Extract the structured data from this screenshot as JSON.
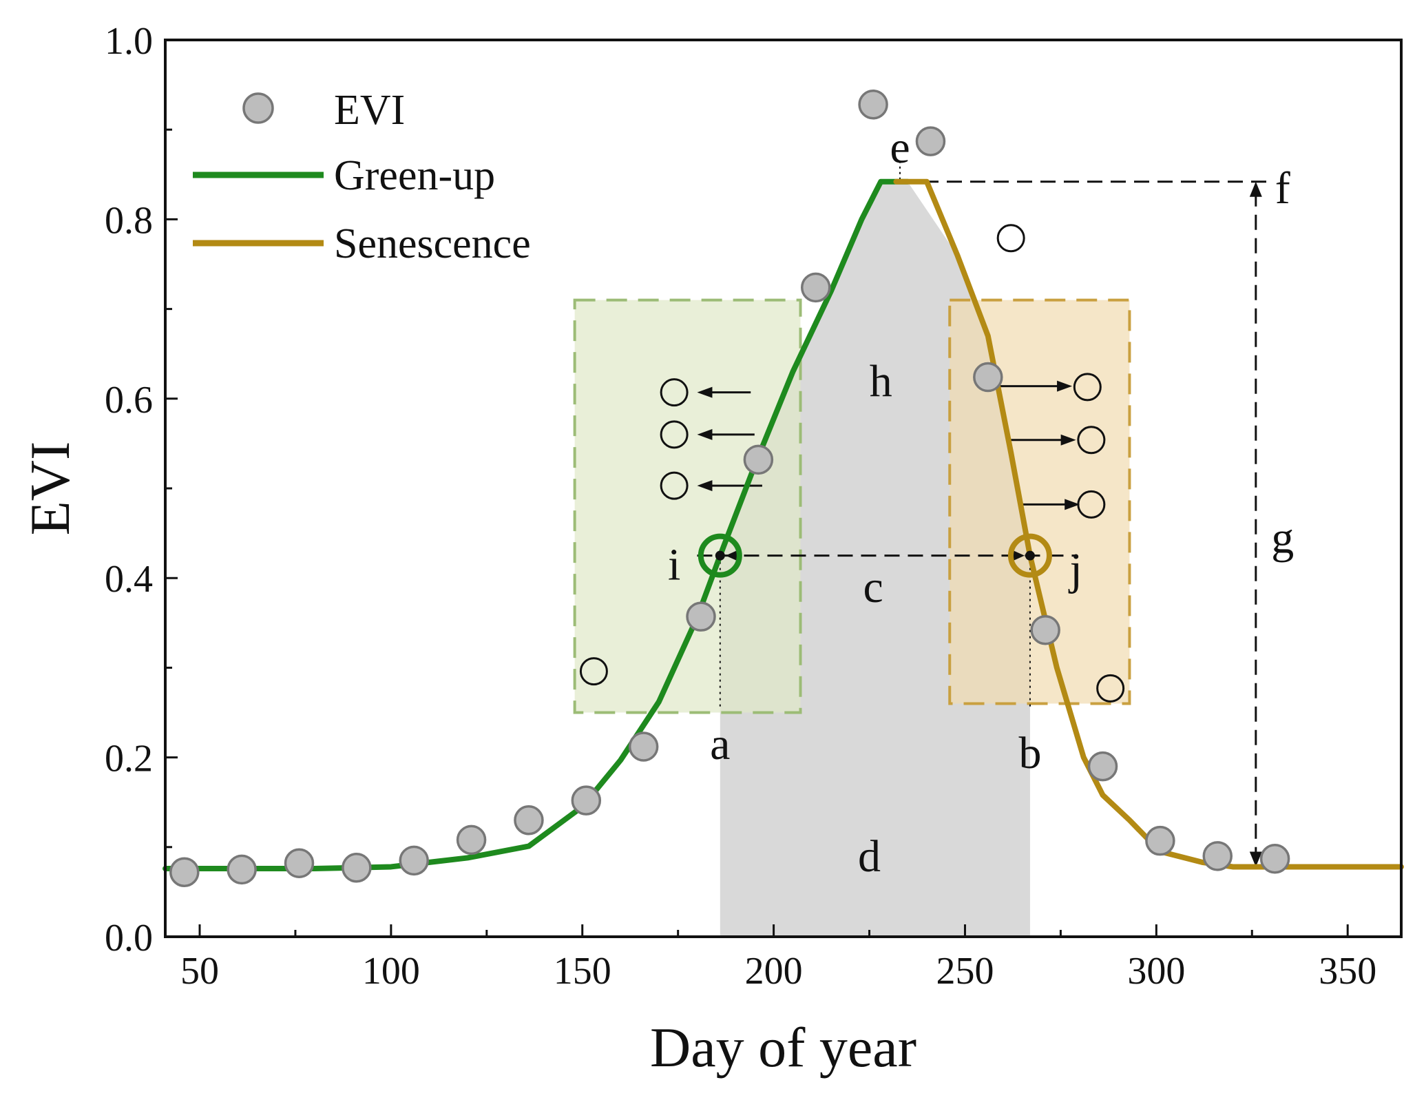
{
  "chart_data": {
    "type": "scatter",
    "title": "",
    "xlabel": "Day of year",
    "ylabel": "EVI",
    "xlim": [
      41,
      364
    ],
    "ylim": [
      0.0,
      1.0
    ],
    "xticks": [
      50,
      100,
      150,
      200,
      250,
      300,
      350
    ],
    "xtick_labels": [
      "50",
      "100",
      "150",
      "200",
      "250",
      "300",
      "350"
    ],
    "yticks": [
      0.0,
      0.2,
      0.4,
      0.6,
      0.8,
      1.0
    ],
    "ytick_labels": [
      "0.0",
      "0.2",
      "0.4",
      "0.6",
      "0.8",
      "1.0"
    ],
    "legend": {
      "position": "top-left",
      "entries": [
        {
          "label": "EVI",
          "kind": "marker"
        },
        {
          "label": "Green-up",
          "kind": "line",
          "color": "#1e8a1e"
        },
        {
          "label": "Senescence",
          "kind": "line",
          "color": "#b38a14"
        }
      ]
    },
    "colors": {
      "green": "#1e8a1e",
      "gold": "#b38a14",
      "marker_fill": "#bdbdbd",
      "marker_edge": "#777777",
      "shade_grey": "#d9d9d9",
      "green_box": "#dfe8c8",
      "green_box_edge": "#9cbc76",
      "gold_box": "#f1dcb0",
      "gold_box_edge": "#c9a040"
    },
    "series": [
      {
        "name": "EVI",
        "kind": "scatter",
        "points": [
          [
            46,
            0.072
          ],
          [
            61,
            0.075
          ],
          [
            76,
            0.082
          ],
          [
            91,
            0.077
          ],
          [
            106,
            0.085
          ],
          [
            121,
            0.108
          ],
          [
            136,
            0.13
          ],
          [
            151,
            0.152
          ],
          [
            166,
            0.212
          ],
          [
            181,
            0.357
          ],
          [
            196,
            0.532
          ],
          [
            211,
            0.724
          ],
          [
            226,
            0.928
          ],
          [
            241,
            0.887
          ],
          [
            256,
            0.624
          ],
          [
            271,
            0.342
          ],
          [
            286,
            0.19
          ],
          [
            301,
            0.107
          ],
          [
            316,
            0.09
          ],
          [
            331,
            0.087
          ]
        ]
      },
      {
        "name": "Green-up",
        "kind": "line",
        "points": [
          [
            41,
            0.076
          ],
          [
            80,
            0.076
          ],
          [
            100,
            0.078
          ],
          [
            120,
            0.088
          ],
          [
            136,
            0.101
          ],
          [
            150,
            0.145
          ],
          [
            160,
            0.197
          ],
          [
            170,
            0.262
          ],
          [
            180,
            0.356
          ],
          [
            186,
            0.425
          ],
          [
            195,
            0.525
          ],
          [
            205,
            0.63
          ],
          [
            215,
            0.72
          ],
          [
            223,
            0.8
          ],
          [
            228,
            0.842
          ],
          [
            235,
            0.842
          ]
        ]
      },
      {
        "name": "Senescence",
        "kind": "line",
        "points": [
          [
            232,
            0.842
          ],
          [
            240,
            0.842
          ],
          [
            248,
            0.76
          ],
          [
            256,
            0.67
          ],
          [
            262,
            0.54
          ],
          [
            267,
            0.425
          ],
          [
            274,
            0.3
          ],
          [
            281,
            0.2
          ],
          [
            286,
            0.158
          ],
          [
            293,
            0.13
          ],
          [
            301,
            0.095
          ],
          [
            312,
            0.083
          ],
          [
            320,
            0.078
          ],
          [
            364,
            0.078
          ]
        ]
      },
      {
        "name": "shifted (open markers)",
        "kind": "scatter-open",
        "points": [
          [
            153,
            0.296
          ],
          [
            174,
            0.607
          ],
          [
            174,
            0.56
          ],
          [
            174,
            0.503
          ],
          [
            262,
            0.779
          ],
          [
            282,
            0.613
          ],
          [
            283,
            0.554
          ],
          [
            283,
            0.482
          ],
          [
            288,
            0.277
          ]
        ]
      }
    ],
    "highlight_points": [
      {
        "label": "green-up date",
        "x": 186,
        "y": 0.425,
        "color": "#1e8a1e"
      },
      {
        "label": "senescence date",
        "x": 267,
        "y": 0.425,
        "color": "#b38a14"
      }
    ],
    "shifts": [
      {
        "from": [
          194,
          0.607
        ],
        "to": [
          180,
          0.607
        ]
      },
      {
        "from": [
          195,
          0.56
        ],
        "to": [
          180,
          0.56
        ]
      },
      {
        "from": [
          197,
          0.503
        ],
        "to": [
          180,
          0.503
        ]
      },
      {
        "from": [
          258,
          0.614
        ],
        "to": [
          278,
          0.614
        ]
      },
      {
        "from": [
          261,
          0.554
        ],
        "to": [
          279,
          0.554
        ]
      },
      {
        "from": [
          264,
          0.482
        ],
        "to": [
          280,
          0.482
        ]
      }
    ],
    "regions": [
      {
        "name": "d",
        "x": [
          186,
          267
        ],
        "y": [
          0.0,
          0.425
        ]
      },
      {
        "name": "h",
        "x_range": [
          186,
          267
        ],
        "threshold": 0.425
      },
      {
        "name": "green window",
        "x": [
          148,
          207
        ],
        "y": [
          0.25,
          0.71
        ]
      },
      {
        "name": "senescence window",
        "x": [
          246,
          293
        ],
        "y": [
          0.26,
          0.71
        ]
      }
    ],
    "guides": {
      "peak_value": 0.842,
      "peak_day": 233,
      "base_value": 0.078,
      "amplitude_day": 326,
      "threshold": 0.425,
      "start_day": 186,
      "end_day": 267
    },
    "annotations": [
      {
        "text": "a",
        "x": 186,
        "y": 0.215
      },
      {
        "text": "b",
        "x": 267,
        "y": 0.205
      },
      {
        "text": "c",
        "x": 226,
        "y": 0.39
      },
      {
        "text": "d",
        "x": 225,
        "y": 0.09
      },
      {
        "text": "e",
        "x": 233,
        "y": 0.88
      },
      {
        "text": "f",
        "x": 333,
        "y": 0.835
      },
      {
        "text": "g",
        "x": 333,
        "y": 0.445
      },
      {
        "text": "h",
        "x": 228,
        "y": 0.62
      },
      {
        "text": "i",
        "x": 174,
        "y": 0.415
      },
      {
        "text": "j",
        "x": 279,
        "y": 0.41
      }
    ]
  }
}
